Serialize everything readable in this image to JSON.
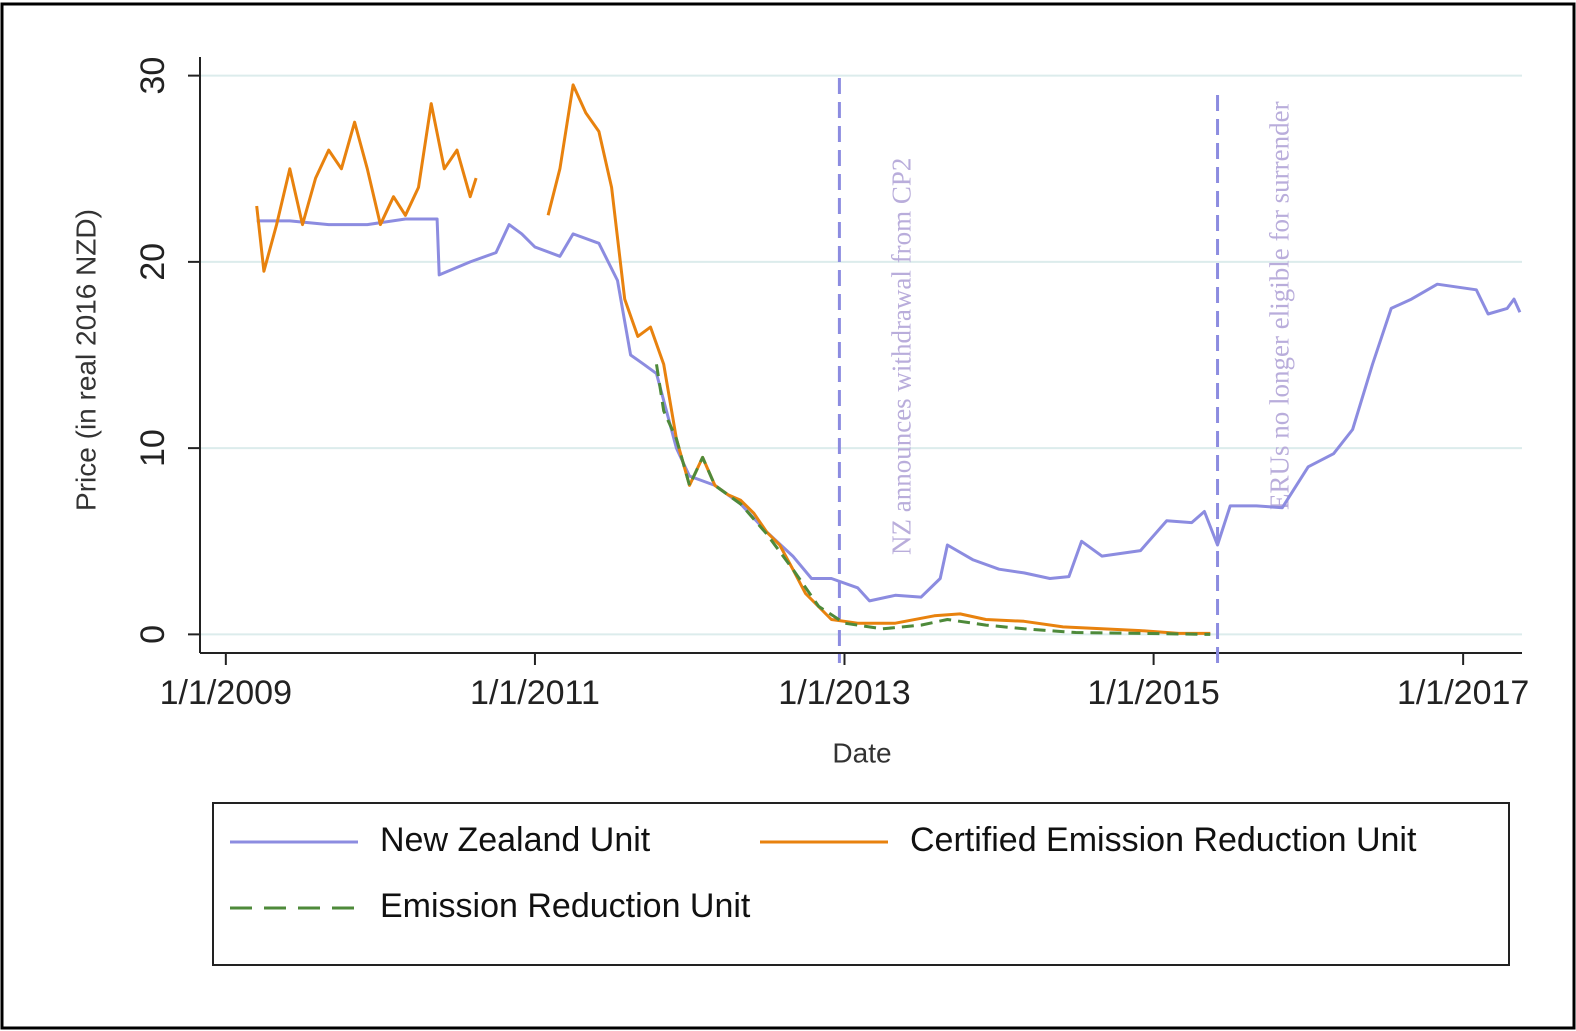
{
  "chart_data": {
    "type": "line",
    "x_label": "Date",
    "y_label": "Price (in real 2016 NZD)",
    "xlim": [
      "11/1/2008",
      "5/20/2017"
    ],
    "xticks": [
      "1/1/2009",
      "1/1/2011",
      "1/1/2013",
      "1/1/2015",
      "1/1/2017"
    ],
    "ylim": [
      -1,
      31
    ],
    "yticks": [
      0,
      10,
      20,
      30
    ],
    "grid": true,
    "legend": "bottom",
    "annotations": [
      {
        "x": "12/20/2012",
        "text": "NZ announces withdrawal from CP2"
      },
      {
        "x": "6/1/2015",
        "text": "ERUs no longer eligible for surrender"
      }
    ],
    "series": [
      {
        "name": "New Zealand Unit",
        "color": "#8c8ce0",
        "dash": false,
        "x": [
          "3/15/2009",
          "6/1/2009",
          "9/1/2009",
          "12/1/2009",
          "3/1/2010",
          "5/15/2010",
          "5/20/2010",
          "8/1/2010",
          "10/1/2010",
          "11/1/2010",
          "12/1/2010",
          "1/1/2011",
          "3/1/2011",
          "4/1/2011",
          "6/1/2011",
          "7/15/2011",
          "8/15/2011",
          "9/15/2011",
          "10/15/2011",
          "12/1/2011",
          "1/1/2012",
          "3/1/2012",
          "5/1/2012",
          "7/1/2012",
          "9/1/2012",
          "10/15/2012",
          "12/1/2012",
          "2/1/2013",
          "3/1/2013",
          "5/1/2013",
          "7/1/2013",
          "8/15/2013",
          "9/1/2013",
          "11/1/2013",
          "1/1/2014",
          "3/1/2014",
          "5/1/2014",
          "6/15/2014",
          "7/15/2014",
          "9/1/2014",
          "12/1/2014",
          "2/1/2015",
          "4/1/2015",
          "5/1/2015",
          "6/1/2015",
          "7/1/2015",
          "9/1/2015",
          "11/1/2015",
          "1/1/2016",
          "3/1/2016",
          "4/15/2016",
          "6/1/2016",
          "7/15/2016",
          "9/1/2016",
          "11/1/2016",
          "2/1/2017",
          "3/1/2017",
          "4/15/2017",
          "5/1/2017",
          "5/15/2017"
        ],
        "values": [
          22.2,
          22.2,
          22.0,
          22.0,
          22.3,
          22.3,
          19.3,
          20.0,
          20.5,
          22.0,
          21.5,
          20.8,
          20.3,
          21.5,
          21.0,
          19.0,
          15.0,
          14.5,
          14.0,
          10.0,
          8.5,
          8.0,
          7.0,
          5.5,
          4.2,
          3.0,
          3.0,
          2.5,
          1.8,
          2.1,
          2.0,
          3.0,
          4.8,
          4.0,
          3.5,
          3.3,
          3.0,
          3.1,
          5.0,
          4.2,
          4.5,
          6.1,
          6.0,
          6.6,
          4.8,
          6.9,
          6.9,
          6.8,
          9.0,
          9.7,
          11.0,
          14.5,
          17.5,
          18.0,
          18.8,
          18.5,
          17.2,
          17.5,
          18.0,
          17.3
        ]
      },
      {
        "name": "Certified Emission Reduction Unit",
        "color": "#e8820e",
        "dash": false,
        "x": [
          "3/15/2009",
          "4/1/2009",
          "5/1/2009",
          "6/1/2009",
          "7/1/2009",
          "8/1/2009",
          "9/1/2009",
          "10/1/2009",
          "11/1/2009",
          "12/1/2009",
          "1/1/2010",
          "2/1/2010",
          "3/1/2010",
          "4/1/2010",
          "5/1/2010",
          "6/1/2010",
          "7/1/2010",
          "8/1/2010",
          "8/15/2010",
          "12/1/2010",
          "2/1/2011",
          "3/1/2011",
          "4/1/2011",
          "5/1/2011",
          "6/1/2011",
          "7/1/2011",
          "8/1/2011",
          "9/1/2011",
          "10/1/2011",
          "11/1/2011",
          "12/1/2011",
          "1/1/2012",
          "2/1/2012",
          "3/1/2012",
          "4/1/2012",
          "5/1/2012",
          "6/1/2012",
          "7/1/2012",
          "8/1/2012",
          "9/1/2012",
          "10/1/2012",
          "12/1/2012",
          "2/1/2013",
          "5/1/2013",
          "8/1/2013",
          "10/1/2013",
          "12/1/2013",
          "3/1/2014",
          "6/1/2014",
          "9/1/2014",
          "12/1/2014",
          "3/1/2015",
          "5/15/2015"
        ],
        "values": [
          23.0,
          19.5,
          22.0,
          25.0,
          22.0,
          24.5,
          26.0,
          25.0,
          27.5,
          25.0,
          22.0,
          23.5,
          22.5,
          24.0,
          28.5,
          25.0,
          26.0,
          23.5,
          24.5,
          null,
          22.5,
          25.0,
          29.5,
          28.0,
          27.0,
          24.0,
          18.0,
          16.0,
          16.5,
          14.5,
          10.5,
          8.0,
          9.5,
          8.0,
          7.5,
          7.2,
          6.5,
          5.5,
          4.8,
          3.5,
          2.2,
          0.8,
          0.6,
          0.6,
          1.0,
          1.1,
          0.8,
          0.7,
          0.4,
          0.3,
          0.2,
          0.05,
          0.05
        ]
      },
      {
        "name": "Emission Reduction Unit",
        "color": "#4e8a3a",
        "dash": true,
        "x": [
          "10/15/2011",
          "11/1/2011",
          "12/1/2011",
          "1/1/2012",
          "2/1/2012",
          "3/1/2012",
          "5/1/2012",
          "7/1/2012",
          "9/1/2012",
          "11/1/2012",
          "1/1/2013",
          "4/1/2013",
          "7/1/2013",
          "9/1/2013",
          "12/1/2013",
          "3/1/2014",
          "7/1/2014",
          "12/1/2014",
          "5/15/2015"
        ],
        "values": [
          14.5,
          12.0,
          10.5,
          8.0,
          9.5,
          8.0,
          7.0,
          5.4,
          3.5,
          1.5,
          0.6,
          0.3,
          0.5,
          0.8,
          0.5,
          0.3,
          0.1,
          0.05,
          0.0
        ]
      }
    ]
  }
}
